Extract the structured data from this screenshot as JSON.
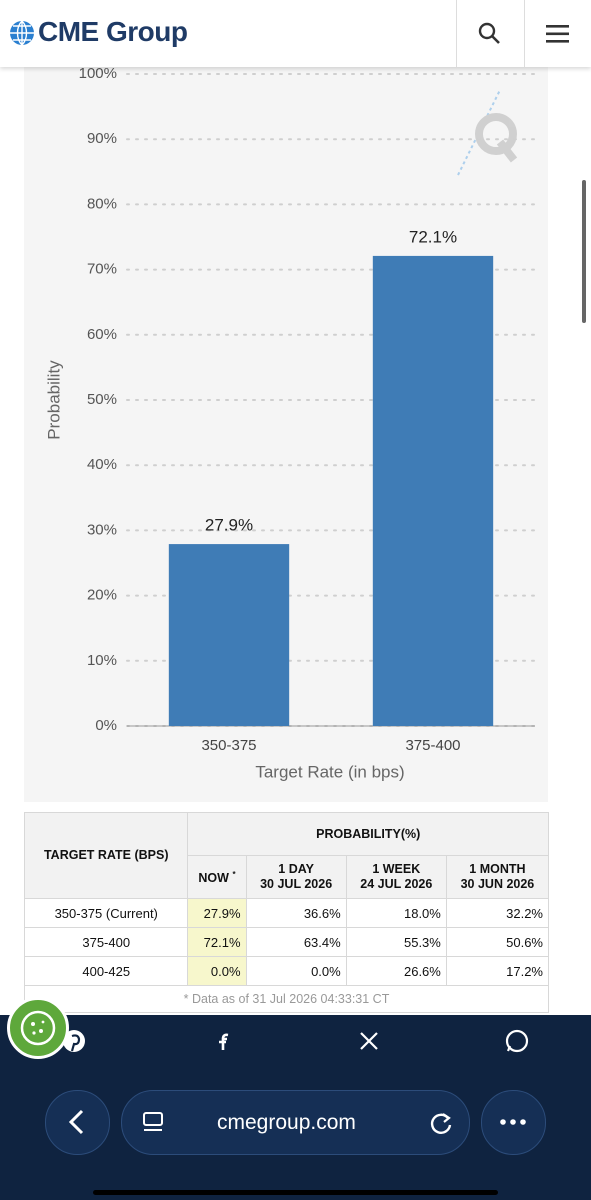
{
  "header": {
    "brand": "CME Group"
  },
  "chart_data": {
    "type": "bar",
    "categories": [
      "350-375",
      "375-400"
    ],
    "values": [
      27.9,
      72.1
    ],
    "value_labels": [
      "27.9%",
      "72.1%"
    ],
    "color": "#3f7cb6",
    "ylabel": "Probability",
    "xlabel": "Target Rate (in bps)",
    "ylim": [
      0,
      100
    ],
    "yticks": [
      {
        "value": 0,
        "label": "0%"
      },
      {
        "value": 10,
        "label": "10%"
      },
      {
        "value": 20,
        "label": "20%"
      },
      {
        "value": 30,
        "label": "30%"
      },
      {
        "value": 40,
        "label": "40%"
      },
      {
        "value": 50,
        "label": "50%"
      },
      {
        "value": 60,
        "label": "60%"
      },
      {
        "value": 70,
        "label": "70%"
      },
      {
        "value": 80,
        "label": "80%"
      },
      {
        "value": 90,
        "label": "90%"
      },
      {
        "value": 100,
        "label": "100%"
      }
    ],
    "grid": true
  },
  "table": {
    "target_rate": "TARGET RATE (BPS)",
    "probability": "PROBABILITY(%)",
    "columns": [
      {
        "label": "NOW",
        "note": "*"
      },
      {
        "label": "1 DAY",
        "date": "30 JUL 2026"
      },
      {
        "label": "1 WEEK",
        "date": "24 JUL 2026"
      },
      {
        "label": "1 MONTH",
        "date": "30 JUN 2026"
      }
    ],
    "rows": [
      [
        "350-375 (Current)",
        "27.9%",
        "36.6%",
        "18.0%",
        "32.2%"
      ],
      [
        "375-400",
        "72.1%",
        "63.4%",
        "55.3%",
        "50.6%"
      ],
      [
        "400-425",
        "0.0%",
        "0.0%",
        "26.6%",
        "17.2%"
      ]
    ],
    "note": "* Data as of 31 Jul 2026 04:33:31 CT"
  },
  "browser": {
    "url": "cmegroup.com"
  }
}
